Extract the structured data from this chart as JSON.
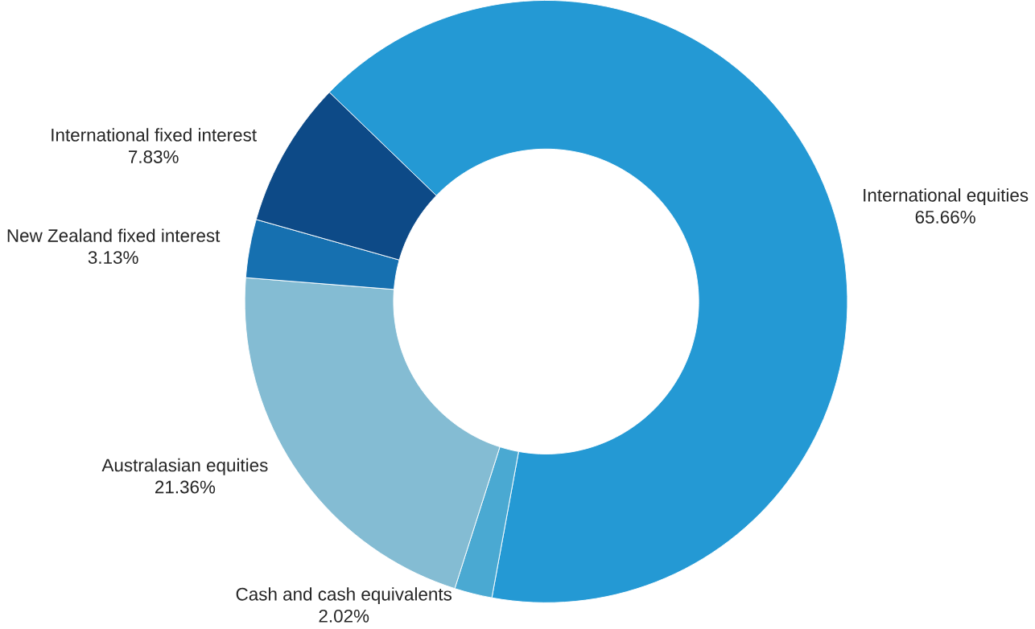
{
  "chart_data": {
    "type": "donut",
    "categories": [
      "International equities",
      "Cash and cash equivalents",
      "Australasian equities",
      "New Zealand fixed interest",
      "International fixed interest"
    ],
    "values": [
      65.66,
      2.02,
      21.36,
      3.13,
      7.83
    ],
    "colors": [
      "#2499d4",
      "#4aa9d2",
      "#84bcd3",
      "#1670b0",
      "#0d4a87"
    ],
    "value_labels": [
      "65.66%",
      "2.02%",
      "21.36%",
      "3.13%",
      "7.83%"
    ]
  }
}
